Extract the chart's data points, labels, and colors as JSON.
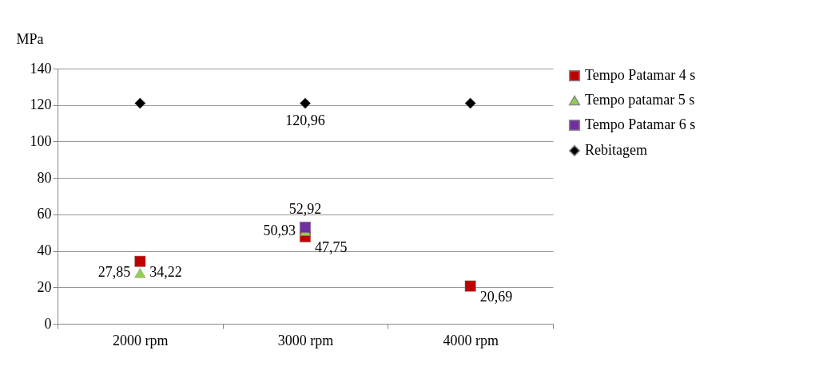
{
  "chart_data": {
    "type": "scatter",
    "ylabel": "MPa",
    "categories": [
      "2000 rpm",
      "3000 rpm",
      "4000 rpm"
    ],
    "ylim": [
      0,
      140
    ],
    "yticks": [
      0,
      20,
      40,
      60,
      80,
      100,
      120,
      140
    ],
    "grid": "y",
    "legend": "right",
    "series": [
      {
        "name": "Tempo Patamar 4 s",
        "color": "#c00000",
        "marker": "square",
        "values": [
          34.22,
          47.75,
          20.69
        ],
        "value_labels": [
          "34,22",
          "47,75",
          "20,69"
        ]
      },
      {
        "name": "Tempo patamar 5 s",
        "color": "#92d050",
        "marker": "triangle",
        "values": [
          27.85,
          50.93,
          null
        ],
        "value_labels": [
          "27,85",
          "50,93",
          null
        ]
      },
      {
        "name": "Tempo Patamar 6 s",
        "color": "#7030a0",
        "marker": "square",
        "values": [
          null,
          52.92,
          null
        ],
        "value_labels": [
          null,
          "52,92",
          null
        ]
      },
      {
        "name": "Rebitagem",
        "color": "#000000",
        "marker": "diamond",
        "values": [
          121,
          120.96,
          121
        ],
        "value_labels": [
          null,
          "120,96",
          null
        ]
      }
    ]
  }
}
